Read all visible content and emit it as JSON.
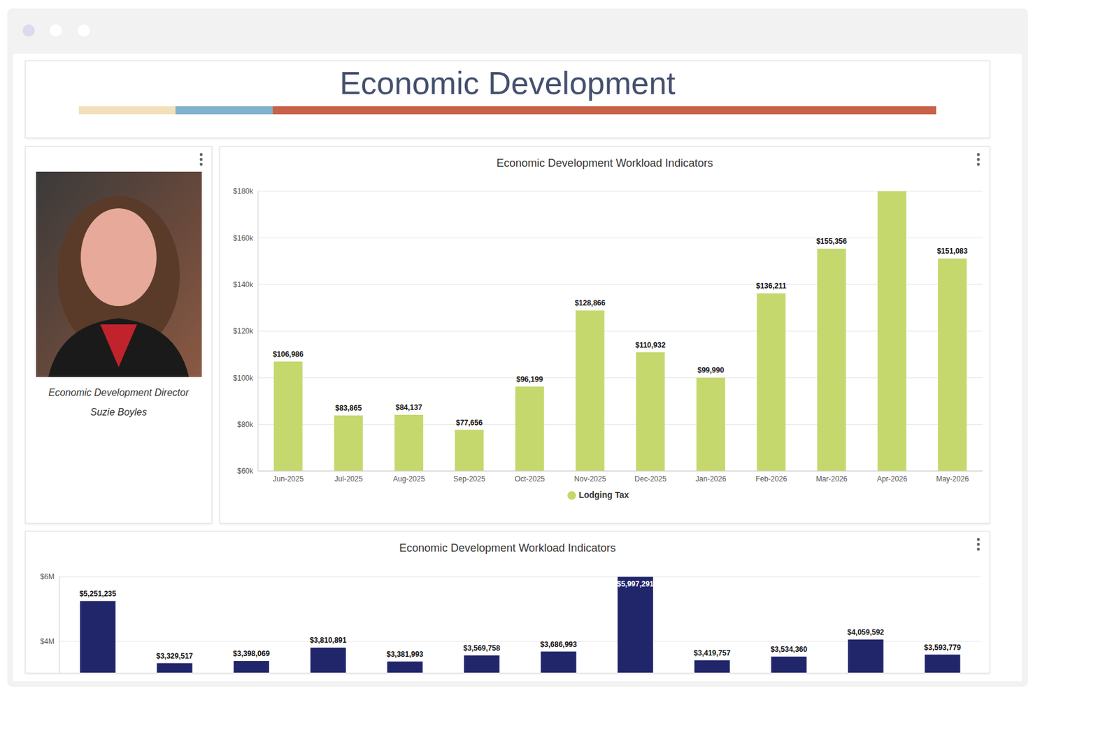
{
  "header": {
    "title": "Economic Development"
  },
  "profile": {
    "caption": "Economic Development Director",
    "name": "Suzie Boyles"
  },
  "chart_data": [
    {
      "type": "bar",
      "title": "Economic Development Workload Indicators",
      "categories": [
        "Jun-2025",
        "Jul-2025",
        "Aug-2025",
        "Sep-2025",
        "Oct-2025",
        "Nov-2025",
        "Dec-2025",
        "Jan-2026",
        "Feb-2026",
        "Mar-2026",
        "Apr-2026",
        "May-2026"
      ],
      "series": [
        {
          "name": "Lodging Tax",
          "color": "#c5d86d",
          "values": [
            106986,
            83865,
            84137,
            77656,
            96199,
            128866,
            110932,
            99990,
            136211,
            155356,
            180000,
            151083
          ],
          "value_labels": [
            "$106,986",
            "$83,865",
            "$84,137",
            "$77,656",
            "$96,199",
            "$128,866",
            "$110,932",
            "$99,990",
            "$136,211",
            "$155,356",
            null,
            "$151,083"
          ]
        }
      ],
      "ylim": [
        60000,
        180000
      ],
      "yticks": [
        {
          "value": 60000,
          "label": "$60k"
        },
        {
          "value": 80000,
          "label": "$80k"
        },
        {
          "value": 100000,
          "label": "$100k"
        },
        {
          "value": 120000,
          "label": "$120k"
        },
        {
          "value": 140000,
          "label": "$140k"
        },
        {
          "value": 160000,
          "label": "$160k"
        },
        {
          "value": 180000,
          "label": "$180k"
        }
      ],
      "grid": true,
      "legend": "bottom",
      "data_labels": true
    },
    {
      "type": "bar",
      "title": "Economic Development Workload Indicators",
      "categories": [
        null,
        null,
        null,
        null,
        null,
        null,
        null,
        null,
        null,
        null,
        null,
        null
      ],
      "values": [
        5251235,
        3329517,
        3398069,
        3810891,
        3381993,
        3569758,
        3686993,
        5997291,
        3419757,
        3534360,
        4059592,
        3593779
      ],
      "value_labels": [
        "$5,251,235",
        "$3,329,517",
        "$3,398,069",
        "$3,810,891",
        "$3,381,993",
        "$3,569,758",
        "$3,686,993",
        "$5,997,291",
        "$3,419,757",
        "$3,534,360",
        "$4,059,592",
        "$3,593,779"
      ],
      "color": "#21266b",
      "ylim": [
        3000000,
        6000000
      ],
      "yticks": [
        {
          "value": 4000000,
          "label": "$4M"
        },
        {
          "value": 6000000,
          "label": "$6M"
        }
      ],
      "grid": true,
      "data_labels": true,
      "tick_labels": "y"
    }
  ]
}
